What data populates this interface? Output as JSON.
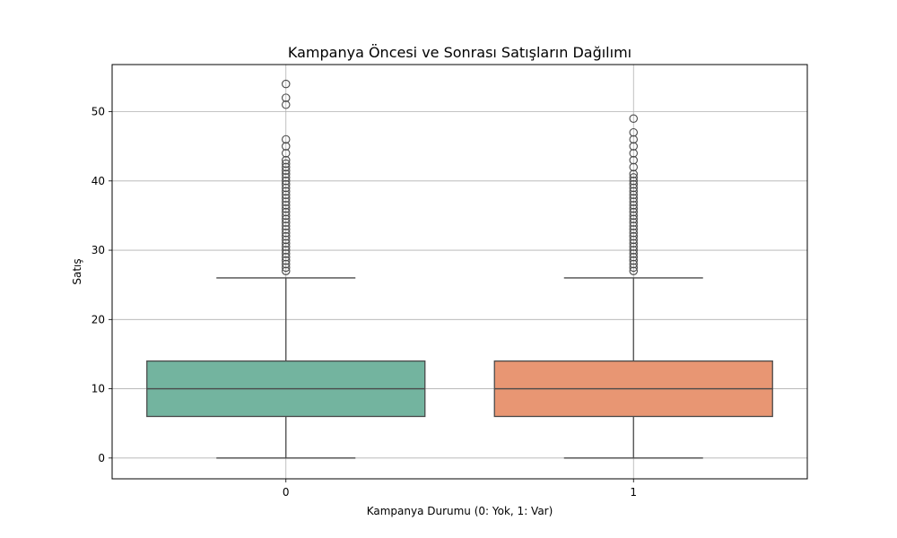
{
  "chart_data": {
    "type": "box",
    "title": "Kampanya Öncesi ve Sonrası Satışların Dağılımı",
    "xlabel": "Kampanya Durumu (0: Yok, 1: Var)",
    "ylabel": "Satış",
    "categories": [
      "0",
      "1"
    ],
    "ylim": [
      -3,
      56.8
    ],
    "yticks": [
      0,
      10,
      20,
      30,
      40,
      50
    ],
    "grid": true,
    "colors": {
      "box_0": "#73b49f",
      "box_1": "#e89673",
      "edge": "#4a4a4a",
      "grid": "#b0b0b0"
    },
    "boxes": [
      {
        "category": "0",
        "whisker_low": 0,
        "q1": 6,
        "median": 10,
        "q3": 14,
        "whisker_high": 26,
        "outliers": [
          27,
          27.5,
          28,
          28.5,
          29,
          29.5,
          30,
          30.5,
          31,
          31.5,
          32,
          32.5,
          33,
          33.5,
          34,
          34.5,
          35,
          35.5,
          36,
          36.5,
          37,
          37.5,
          38,
          38.5,
          39,
          39.5,
          40,
          40.5,
          41,
          41.5,
          42,
          42.5,
          43,
          44,
          45,
          46,
          51,
          52,
          54
        ]
      },
      {
        "category": "1",
        "whisker_low": 0,
        "q1": 6,
        "median": 10,
        "q3": 14,
        "whisker_high": 26,
        "outliers": [
          27,
          27.5,
          28,
          28.5,
          29,
          29.5,
          30,
          30.5,
          31,
          31.5,
          32,
          32.5,
          33,
          33.5,
          34,
          34.5,
          35,
          35.5,
          36,
          36.5,
          37,
          37.5,
          38,
          38.5,
          39,
          39.5,
          40,
          40.5,
          41,
          42,
          43,
          44,
          45,
          46,
          47,
          49
        ]
      }
    ]
  }
}
